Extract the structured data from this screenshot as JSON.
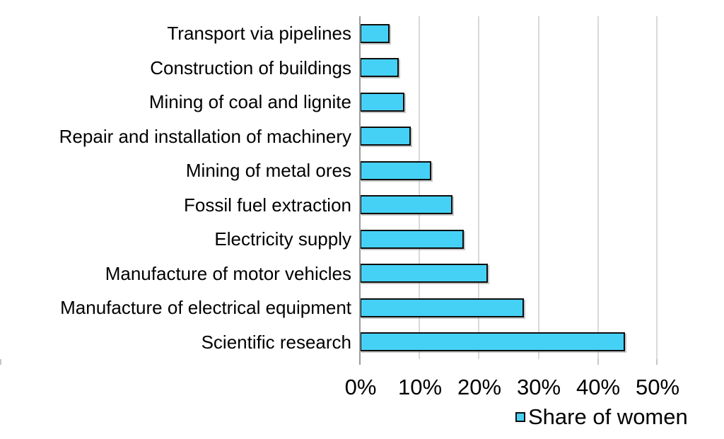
{
  "chart_data": {
    "type": "bar",
    "orientation": "horizontal",
    "title": "",
    "xlabel": "",
    "ylabel": "",
    "categories": [
      "Transport via pipelines",
      "Construction of buildings",
      "Mining of coal and lignite",
      "Repair and installation of machinery",
      "Mining of metal ores",
      "Fossil fuel extraction",
      "Electricity supply",
      "Manufacture of motor vehicles",
      "Manufacture of electrical equipment",
      "Scientific research"
    ],
    "values": [
      5,
      6.5,
      7.5,
      8.5,
      12,
      15.5,
      17.5,
      21.5,
      27.5,
      44.5
    ],
    "series": [
      {
        "name": "Share of women",
        "values": [
          5,
          6.5,
          7.5,
          8.5,
          12,
          15.5,
          17.5,
          21.5,
          27.5,
          44.5
        ]
      }
    ],
    "xlim": [
      0,
      50
    ],
    "x_ticks": [
      "0%",
      "10%",
      "20%",
      "30%",
      "40%",
      "50%"
    ],
    "grid": "vertical-only",
    "legend_position": "bottom-right",
    "colors": {
      "bar_fill": "#45d1f5",
      "bar_border": "#0d0d0d",
      "gridline": "#d9d9d9",
      "axis": "#9a9a9a",
      "text": "#000000",
      "background": "#ffffff"
    }
  },
  "legend": {
    "label": "Share of women"
  }
}
